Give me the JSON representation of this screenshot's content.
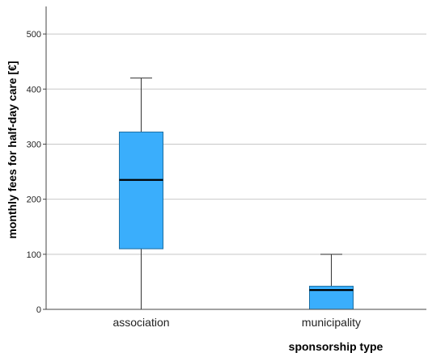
{
  "chart_data": {
    "type": "box",
    "xlabel": "sponsorship type",
    "ylabel": "monthly fees for half-day care [€]",
    "ylim": [
      0,
      550
    ],
    "yticks": [
      0,
      100,
      200,
      300,
      400,
      500
    ],
    "grid": "horizontal",
    "box_color": "#3aaefc",
    "box_edge_color": "#1d6fa3",
    "median_color": "#000000",
    "categories": [
      "association",
      "municipality"
    ],
    "boxes": [
      {
        "category": "association",
        "min": 0,
        "q1": 110,
        "median": 235,
        "q3": 322,
        "max": 420
      },
      {
        "category": "municipality",
        "min": 0,
        "q1": 0,
        "median": 35,
        "q3": 42,
        "max": 100
      }
    ]
  }
}
